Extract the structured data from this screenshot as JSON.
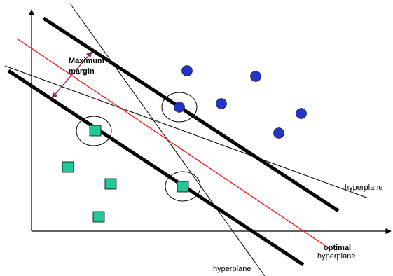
{
  "labels": {
    "margin_line1": "Maximum",
    "margin_line2": "margin",
    "hyperplane_right": "hyperplane",
    "hyperplane_bottom": "hyperplane",
    "optimal_line1": "optimal",
    "optimal_line2": "hyperplane"
  },
  "colors": {
    "axis": "#000000",
    "margin_boundary": "#000000",
    "optimal_hyperplane": "#ff0000",
    "alt_hyperplane": "#000000",
    "circle_points": "#2433c8",
    "square_points": "#1ec99a",
    "margin_arrow": "#8b2d5a",
    "support_ring": "#000000"
  },
  "classes": {
    "circles": {
      "shape": "circle",
      "count": 6
    },
    "squares": {
      "shape": "square",
      "count": 5
    }
  },
  "support_vectors": {
    "count": 3
  }
}
